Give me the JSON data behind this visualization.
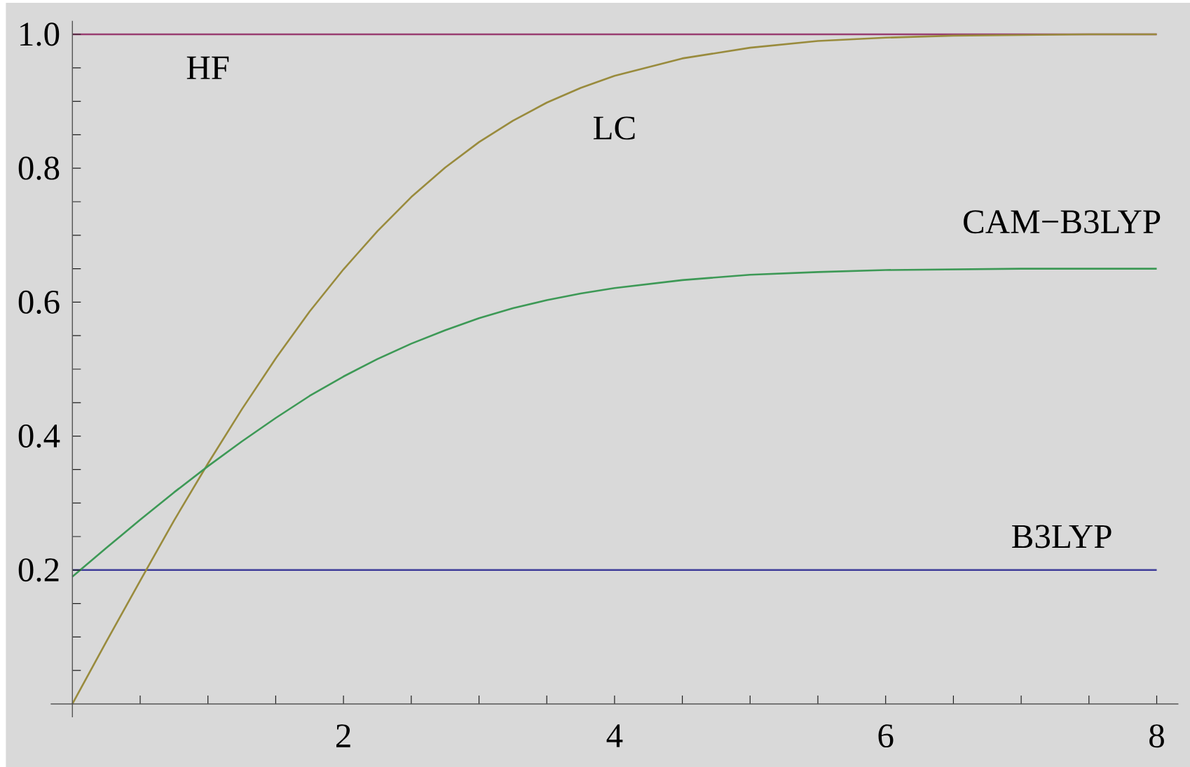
{
  "chart_data": {
    "type": "line",
    "xlim": [
      -0.16,
      8.16
    ],
    "ylim": [
      -0.02,
      1.02
    ],
    "xticks": [
      {
        "value": 0.5,
        "label": null
      },
      {
        "value": 1,
        "label": null
      },
      {
        "value": 1.5,
        "label": null
      },
      2,
      {
        "value": 2.5,
        "label": null
      },
      {
        "value": 3,
        "label": null
      },
      {
        "value": 3.5,
        "label": null
      },
      4,
      {
        "value": 4.5,
        "label": null
      },
      {
        "value": 5,
        "label": null
      },
      {
        "value": 5.5,
        "label": null
      },
      6,
      {
        "value": 6.5,
        "label": null
      },
      {
        "value": 7,
        "label": null
      },
      {
        "value": 7.5,
        "label": null
      },
      8
    ],
    "yticks": [
      {
        "value": 0.05,
        "label": null
      },
      {
        "value": 0.1,
        "label": null
      },
      {
        "value": 0.15,
        "label": null
      },
      0.2,
      {
        "value": 0.25,
        "label": null
      },
      {
        "value": 0.3,
        "label": null
      },
      {
        "value": 0.35,
        "label": null
      },
      0.4,
      {
        "value": 0.45,
        "label": null
      },
      {
        "value": 0.5,
        "label": null
      },
      {
        "value": 0.55,
        "label": null
      },
      0.6,
      {
        "value": 0.65,
        "label": null
      },
      {
        "value": 0.7,
        "label": null
      },
      {
        "value": 0.75,
        "label": null
      },
      0.8,
      {
        "value": 0.85,
        "label": null
      },
      {
        "value": 0.9,
        "label": null
      },
      {
        "value": 0.95,
        "label": null
      },
      {
        "value": 1,
        "label": "1.0"
      }
    ],
    "marker": "none",
    "series": [
      {
        "name": "B3LYP",
        "color": "#3f3d99",
        "x": [
          0,
          8
        ],
        "values": [
          0.2,
          0.2
        ]
      },
      {
        "name": "HF",
        "color": "#993d71",
        "x": [
          0,
          8
        ],
        "values": [
          1.0,
          1.0
        ]
      },
      {
        "name": "LC",
        "color": "#998b3d",
        "x": [
          0,
          0.25,
          0.5,
          0.75,
          1,
          1.25,
          1.5,
          1.75,
          2,
          2.25,
          2.5,
          2.75,
          3,
          3.25,
          3.5,
          3.75,
          4,
          4.5,
          5,
          5.5,
          6,
          6.5,
          7,
          7.5,
          8
        ],
        "values": [
          0,
          0.093,
          0.184,
          0.274,
          0.359,
          0.44,
          0.516,
          0.586,
          0.649,
          0.706,
          0.757,
          0.801,
          0.839,
          0.871,
          0.898,
          0.92,
          0.938,
          0.964,
          0.98,
          0.99,
          0.995,
          0.998,
          0.999,
          1.0,
          1.0
        ]
      },
      {
        "name": "CAM−B3LYP",
        "color": "#3d9956",
        "x": [
          0,
          0.25,
          0.5,
          0.75,
          1,
          1.25,
          1.5,
          1.75,
          2,
          2.25,
          2.5,
          2.75,
          3,
          3.25,
          3.5,
          3.75,
          4,
          4.5,
          5,
          5.5,
          6,
          6.5,
          7,
          7.5,
          8
        ],
        "values": [
          0.19,
          0.233,
          0.275,
          0.316,
          0.355,
          0.392,
          0.427,
          0.46,
          0.489,
          0.515,
          0.538,
          0.558,
          0.576,
          0.591,
          0.603,
          0.613,
          0.621,
          0.633,
          0.641,
          0.645,
          0.648,
          0.649,
          0.65,
          0.65,
          0.65
        ]
      }
    ]
  }
}
